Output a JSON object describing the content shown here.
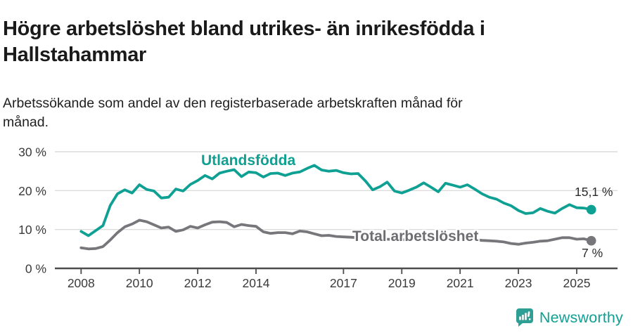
{
  "header": {
    "title": "Högre arbetslöshet bland utrikes- än inrikesfödda i Hallstahammar",
    "subtitle": "Arbetssökande som andel av den registerbaserade arbetskraften månad för månad."
  },
  "colors": {
    "accent_teal": "#0fa094",
    "series_gray": "#76767b",
    "label_gray": "#6d6d72",
    "grid": "#dcdcdc",
    "axis": "#4d4d4d",
    "tick_text": "#3a3a3a",
    "title_text": "#1a1a1a"
  },
  "chart_data": {
    "type": "line",
    "title": "Högre arbetslöshet bland utrikes- än inrikesfödda i Hallstahammar",
    "subtitle": "Arbetssökande som andel av den registerbaserade arbetskraften månad för månad.",
    "xlabel": "",
    "ylabel": "",
    "grid": "horizontal",
    "xlim": [
      2007.1,
      2026.4
    ],
    "ylim": [
      0,
      30
    ],
    "x_ticks": [
      2008,
      2010,
      2012,
      2014,
      2017,
      2019,
      2021,
      2023,
      2025
    ],
    "x_tick_labels": [
      "2008",
      "2010",
      "2012",
      "2014",
      "2017",
      "2019",
      "2021",
      "2023",
      "2025"
    ],
    "y_ticks": [
      0,
      10,
      20,
      30
    ],
    "y_tick_labels": [
      "0 %",
      "10 %",
      "20 %",
      "30 %"
    ],
    "x_unit": "decimal year, quarterly samples",
    "y_unit": "percent",
    "series": [
      {
        "name": "Utlandsfödda",
        "color": "#0fa094",
        "end_label": "15,1 %",
        "end_value": 15.1,
        "x_start": 2008.0,
        "x_step": 0.25,
        "values": [
          9.5,
          8.4,
          9.7,
          11.0,
          16.2,
          19.2,
          20.2,
          19.4,
          21.5,
          20.3,
          19.9,
          18.1,
          18.3,
          20.4,
          19.9,
          21.6,
          22.6,
          23.9,
          23.0,
          24.5,
          25.0,
          25.4,
          23.6,
          24.8,
          24.6,
          23.5,
          24.4,
          24.5,
          23.9,
          24.5,
          24.8,
          25.7,
          26.5,
          25.3,
          25.0,
          25.2,
          24.6,
          24.3,
          24.4,
          22.5,
          20.2,
          21.0,
          22.2,
          19.9,
          19.4,
          20.1,
          20.9,
          22.0,
          20.9,
          19.7,
          21.9,
          21.4,
          20.9,
          21.5,
          20.4,
          19.2,
          18.3,
          17.8,
          16.8,
          16.1,
          14.9,
          14.1,
          14.3,
          15.4,
          14.7,
          14.2,
          15.4,
          16.4,
          15.6,
          15.5,
          15.1
        ]
      },
      {
        "name": "Total arbetslöshet",
        "color": "#76767b",
        "end_label": "7 %",
        "end_value": 7.1,
        "x_start": 2008.0,
        "x_step": 0.25,
        "values": [
          5.3,
          5.0,
          5.1,
          5.6,
          7.3,
          9.2,
          10.7,
          11.4,
          12.4,
          12.0,
          11.2,
          10.4,
          10.6,
          9.5,
          9.9,
          10.8,
          10.4,
          11.2,
          11.9,
          12.0,
          11.8,
          10.7,
          11.3,
          11.0,
          10.8,
          9.4,
          9.0,
          9.2,
          9.2,
          8.9,
          9.6,
          9.4,
          8.9,
          8.4,
          8.5,
          8.2,
          8.1,
          8.0,
          7.9,
          7.8,
          7.7,
          7.6,
          7.5,
          7.4,
          7.4,
          7.3,
          7.3,
          7.4,
          7.5,
          8.0,
          8.3,
          8.1,
          7.8,
          7.6,
          7.4,
          7.2,
          7.1,
          7.0,
          6.8,
          6.4,
          6.2,
          6.5,
          6.7,
          7.0,
          7.1,
          7.5,
          7.9,
          7.9,
          7.5,
          7.6,
          7.1
        ]
      }
    ],
    "legend_position": "inline-on-lines"
  },
  "footer": {
    "brand": "Newsworthy"
  }
}
